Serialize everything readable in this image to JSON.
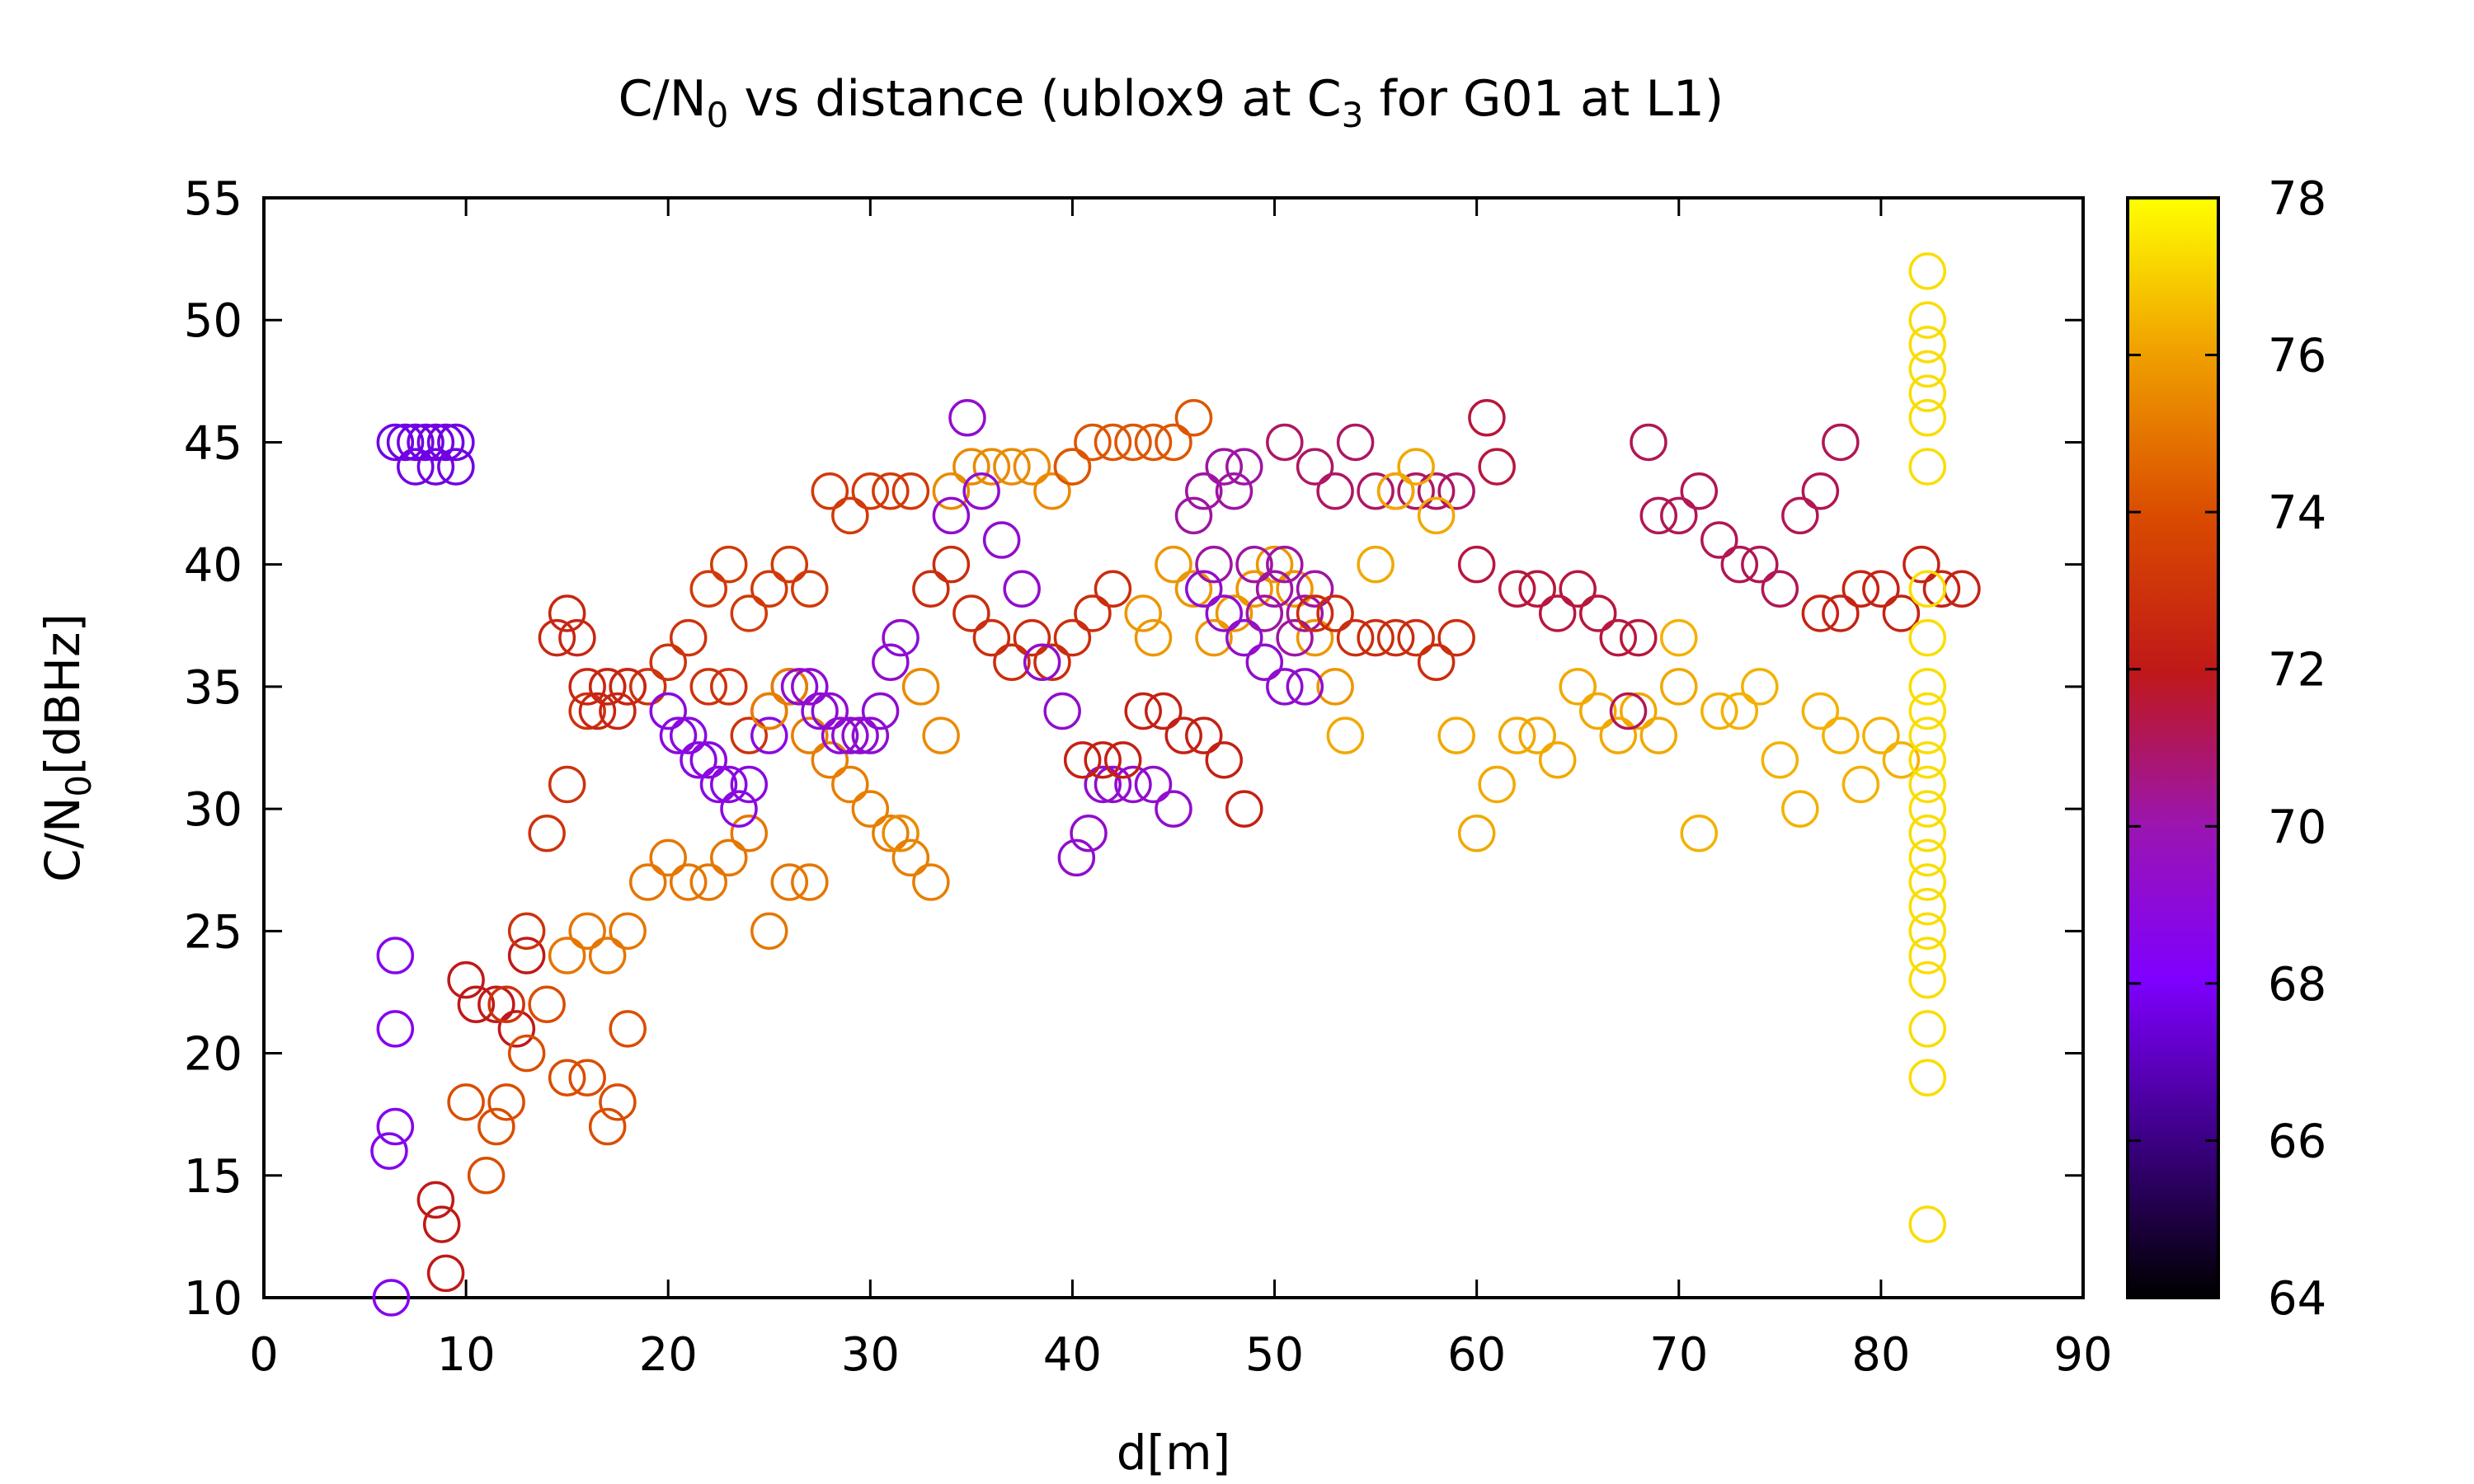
{
  "chart_data": {
    "type": "scatter",
    "title": {
      "main": "C/N",
      "sub1": "0",
      "mid": " vs distance (ublox9 at C",
      "sub2": "3",
      "tail": " for G01 at L1)"
    },
    "xlabel": "d[m]",
    "ylabel": {
      "main": "C/N",
      "sub": "0",
      "tail": "[dBHz]"
    },
    "xlim": [
      0,
      90
    ],
    "ylim": [
      10,
      55
    ],
    "xticks": [
      0,
      10,
      20,
      30,
      40,
      50,
      60,
      70,
      80,
      90
    ],
    "yticks": [
      10,
      15,
      20,
      25,
      30,
      35,
      40,
      45,
      50,
      55
    ],
    "xtick_labels": [
      "0",
      "10",
      "20",
      "30",
      "40",
      "50",
      "60",
      "70",
      "80",
      "90"
    ],
    "ytick_labels": [
      "10",
      "15",
      "20",
      "25",
      "30",
      "35",
      "40",
      "45",
      "50",
      "55"
    ],
    "colorbar": {
      "range": [
        64,
        78
      ],
      "ticks": [
        64,
        66,
        68,
        70,
        72,
        74,
        76,
        78
      ],
      "tick_labels": [
        "64",
        "66",
        "68",
        "70",
        "72",
        "74",
        "76",
        "78"
      ],
      "palette": [
        [
          "#000000",
          0
        ],
        [
          "#3a0080",
          0.14
        ],
        [
          "#7f00ff",
          0.29
        ],
        [
          "#9b15b0",
          0.43
        ],
        [
          "#c01818",
          0.57
        ],
        [
          "#d94b00",
          0.71
        ],
        [
          "#f0a000",
          0.86
        ],
        [
          "#ffff00",
          1
        ]
      ]
    },
    "marker": "open-circle",
    "grid": false,
    "legend": "none",
    "series": [
      {
        "x": [
          6.5,
          7,
          7.5,
          8,
          8.5,
          9,
          9.5,
          7.5,
          8.5,
          9.5
        ],
        "y": [
          45,
          45,
          45,
          45,
          45,
          45,
          45,
          44,
          44,
          44
        ],
        "c": [
          67.6,
          67.6,
          67.6,
          67.6,
          67.6,
          67.6,
          67.6,
          67.6,
          67.6,
          67.6
        ]
      },
      {
        "x": [
          6.5,
          6.5,
          6.5,
          6.2,
          6.3
        ],
        "y": [
          24,
          21,
          17,
          16,
          10
        ],
        "c": [
          68.5,
          68.5,
          68.5,
          68.5,
          68.5
        ]
      },
      {
        "x": [
          8.5,
          8.8,
          9,
          10,
          10.5,
          11.5,
          12.5,
          13
        ],
        "y": [
          14,
          13,
          11,
          23,
          22,
          22,
          21,
          24
        ],
        "c": [
          72,
          72,
          72,
          72,
          72,
          72,
          72,
          72
        ]
      },
      {
        "x": [
          10,
          11,
          11.5,
          12,
          13,
          14,
          15,
          16,
          17,
          17.5,
          18
        ],
        "y": [
          18,
          15,
          17,
          18,
          20,
          22,
          19,
          19,
          17,
          18,
          21
        ],
        "c": [
          74,
          74,
          74,
          74,
          74,
          74,
          74,
          74,
          74,
          74,
          74
        ]
      },
      {
        "x": [
          12,
          13,
          14,
          15,
          16,
          17,
          18,
          19,
          20,
          21,
          22,
          23,
          24,
          25,
          26
        ],
        "y": [
          22,
          25,
          29,
          31,
          34,
          35,
          35,
          35,
          36,
          37,
          35,
          35,
          33,
          34,
          35
        ],
        "c": [
          73,
          73,
          73,
          73,
          73,
          73,
          73,
          73,
          73,
          73,
          73,
          73,
          73,
          73,
          73
        ]
      },
      {
        "x": [
          14.5,
          15,
          15.5,
          16,
          16.5,
          17,
          17.5,
          18
        ],
        "y": [
          37,
          38,
          37,
          35,
          34,
          35,
          34,
          35
        ],
        "c": [
          72.5,
          72.5,
          72.5,
          72.5,
          72.5,
          72.5,
          72.5,
          72.5
        ]
      },
      {
        "x": [
          15,
          16,
          17,
          18,
          19,
          20,
          21,
          22,
          23,
          24,
          25,
          26,
          27
        ],
        "y": [
          24,
          25,
          24,
          25,
          27,
          28,
          27,
          27,
          28,
          29,
          25,
          27,
          27
        ],
        "c": [
          75,
          75,
          75,
          75,
          75,
          75,
          75,
          75,
          75,
          75,
          75,
          75,
          75
        ]
      },
      {
        "x": [
          20,
          20.5,
          21,
          21.5,
          22,
          22.5,
          23,
          23.5,
          24,
          25
        ],
        "y": [
          34,
          33,
          33,
          32,
          32,
          31,
          31,
          30,
          31,
          33
        ],
        "c": [
          68.8,
          68.8,
          68.8,
          68.8,
          68.8,
          68.8,
          68.8,
          68.8,
          68.8,
          68.8
        ]
      },
      {
        "x": [
          22,
          23,
          24,
          25,
          26,
          27,
          28,
          29,
          30,
          31,
          32
        ],
        "y": [
          39,
          40,
          38,
          39,
          40,
          39,
          43,
          42,
          43,
          43,
          43
        ],
        "c": [
          73.3,
          73.3,
          73.3,
          73.3,
          73.3,
          73.3,
          73.3,
          73.3,
          73.3,
          73.3,
          73.3
        ]
      },
      {
        "x": [
          25,
          26,
          27,
          28,
          29,
          30,
          31,
          32,
          33
        ],
        "y": [
          34,
          35,
          33,
          32,
          31,
          30,
          29,
          28,
          27
        ],
        "c": [
          75.2,
          75.2,
          75.2,
          75.2,
          75.2,
          75.2,
          75.2,
          75.2,
          75.2
        ]
      },
      {
        "x": [
          26.5,
          27,
          27.5,
          28,
          28.5,
          29,
          29.5,
          30,
          30.5,
          31,
          31.5
        ],
        "y": [
          35,
          35,
          34,
          34,
          33,
          33,
          33,
          33,
          34,
          36,
          37
        ],
        "c": [
          69.2,
          69.2,
          69.2,
          69.2,
          69.2,
          69.2,
          69.2,
          69.2,
          69.2,
          69.2,
          69.2
        ]
      },
      {
        "x": [
          31.5,
          32.5,
          33.5,
          34,
          35,
          36,
          37,
          38,
          39,
          40
        ],
        "y": [
          29,
          35,
          33,
          43,
          44,
          44,
          44,
          44,
          43,
          44
        ],
        "c": [
          75.5,
          75.5,
          75.5,
          75.5,
          75.5,
          75.5,
          75.5,
          75.5,
          75.5,
          75.5
        ]
      },
      {
        "x": [
          33,
          34,
          35,
          36,
          37,
          38,
          39,
          40,
          41,
          42
        ],
        "y": [
          39,
          40,
          38,
          37,
          36,
          37,
          36,
          37,
          38,
          39
        ],
        "c": [
          72.8,
          72.8,
          72.8,
          72.8,
          72.8,
          72.8,
          72.8,
          72.8,
          72.8,
          72.8
        ]
      },
      {
        "x": [
          34,
          34.8,
          35.5,
          36.5,
          37.5,
          38.5,
          39.5,
          40.2,
          40.8,
          41.5,
          42,
          43,
          44,
          45
        ],
        "y": [
          42,
          46,
          43,
          41,
          39,
          36,
          34,
          28,
          29,
          31,
          31,
          31,
          31,
          30
        ],
        "c": [
          69.3,
          69.3,
          69.3,
          69.3,
          69.3,
          69.3,
          69.3,
          69.3,
          69.3,
          69.3,
          69.3,
          69.3,
          69.3,
          69.3
        ]
      },
      {
        "x": [
          40,
          41,
          42,
          43,
          44,
          45,
          46
        ],
        "y": [
          44,
          45,
          45,
          45,
          45,
          45,
          46
        ],
        "c": [
          74.2,
          74.2,
          74.2,
          74.2,
          74.2,
          74.2,
          74.2
        ]
      },
      {
        "x": [
          40.5,
          41.5,
          42.5,
          43.5,
          44.5,
          45.5,
          46.5,
          47.5,
          48.5
        ],
        "y": [
          32,
          32,
          32,
          34,
          34,
          33,
          33,
          32,
          30
        ],
        "c": [
          72.3,
          72.3,
          72.3,
          72.3,
          72.3,
          72.3,
          72.3,
          72.3,
          72.3
        ]
      },
      {
        "x": [
          43.5,
          44,
          45,
          46,
          47,
          48,
          49,
          50,
          51,
          52,
          53
        ],
        "y": [
          38,
          37,
          40,
          39,
          37,
          38,
          39,
          40,
          39,
          37,
          35
        ],
        "c": [
          75.8,
          75.8,
          75.8,
          75.8,
          75.8,
          75.8,
          75.8,
          75.8,
          75.8,
          75.8,
          75.8
        ]
      },
      {
        "x": [
          46,
          46.5,
          47,
          47.5,
          48,
          48.5,
          49,
          49.5,
          50,
          50.5,
          51,
          51.5,
          52
        ],
        "y": [
          42,
          43,
          40,
          44,
          43,
          44,
          40,
          38,
          39,
          40,
          37,
          38,
          39
        ],
        "c": [
          70.2,
          70.2,
          70.2,
          70.2,
          70.2,
          70.2,
          70.2,
          70.2,
          70.2,
          70.2,
          70.2,
          70.2,
          70.2
        ]
      },
      {
        "x": [
          46.5,
          47.5,
          48.5,
          49.5,
          50.5,
          51.5
        ],
        "y": [
          39,
          38,
          37,
          36,
          35,
          35
        ],
        "c": [
          69.3,
          69.3,
          69.3,
          69.3,
          69.3,
          69.3
        ]
      },
      {
        "x": [
          50.5,
          52,
          53,
          54,
          55,
          56,
          57,
          58,
          59
        ],
        "y": [
          45,
          44,
          43,
          45,
          43,
          43,
          43,
          43,
          43
        ],
        "c": [
          71,
          71,
          71,
          71,
          71,
          71,
          71,
          71,
          71
        ]
      },
      {
        "x": [
          52,
          53,
          54,
          55,
          56,
          57,
          58,
          59
        ],
        "y": [
          38,
          38,
          37,
          37,
          37,
          37,
          36,
          37
        ],
        "c": [
          72.8,
          72.8,
          72.8,
          72.8,
          72.8,
          72.8,
          72.8,
          72.8
        ]
      },
      {
        "x": [
          53.5,
          55,
          56,
          57,
          58,
          59,
          60,
          61,
          62,
          63,
          64,
          65,
          66,
          67,
          68,
          69,
          70
        ],
        "y": [
          33,
          40,
          43,
          44,
          42,
          33,
          29,
          31,
          33,
          33,
          32,
          35,
          34,
          33,
          34,
          33,
          35
        ],
        "c": [
          76.2,
          76.2,
          76.2,
          76.2,
          76.2,
          76.2,
          76.2,
          76.2,
          76.2,
          76.2,
          76.2,
          76.2,
          76.2,
          76.2,
          76.2,
          76.2,
          76.2
        ]
      },
      {
        "x": [
          60,
          60.5,
          61,
          62,
          63,
          64,
          65,
          66,
          67,
          68
        ],
        "y": [
          40,
          46,
          44,
          39,
          39,
          38,
          39,
          38,
          37,
          37
        ],
        "c": [
          71.5,
          71.5,
          71.5,
          71.5,
          71.5,
          71.5,
          71.5,
          71.5,
          71.5,
          71.5
        ]
      },
      {
        "x": [
          67.5,
          68.5,
          69,
          70,
          71,
          72,
          73,
          74,
          75,
          76,
          77,
          78
        ],
        "y": [
          34,
          45,
          42,
          42,
          43,
          41,
          40,
          40,
          39,
          42,
          43,
          45
        ],
        "c": [
          71.2,
          71.2,
          71.2,
          71.2,
          71.2,
          71.2,
          71.2,
          71.2,
          71.2,
          71.2,
          71.2,
          71.2
        ]
      },
      {
        "x": [
          70,
          71,
          72,
          73,
          74,
          75,
          76,
          77,
          78,
          79,
          80,
          81
        ],
        "y": [
          37,
          29,
          34,
          34,
          35,
          32,
          30,
          34,
          33,
          31,
          33,
          32
        ],
        "c": [
          76.4,
          76.4,
          76.4,
          76.4,
          76.4,
          76.4,
          76.4,
          76.4,
          76.4,
          76.4,
          76.4,
          76.4
        ]
      },
      {
        "x": [
          77,
          78,
          79,
          80,
          81,
          82,
          83,
          84
        ],
        "y": [
          38,
          38,
          39,
          39,
          38,
          40,
          39,
          39
        ],
        "c": [
          72.4,
          72.4,
          72.4,
          72.4,
          72.4,
          72.4,
          72.4,
          72.4
        ]
      },
      {
        "x": [
          82.3,
          82.3,
          82.3,
          82.3,
          82.3,
          82.3,
          82.3,
          82.3,
          82.3,
          82.3,
          82.3,
          82.3,
          82.3,
          82.3,
          82.3,
          82.3,
          82.3,
          82.3,
          82.3,
          82.3,
          82.3,
          82.3,
          82.3,
          82.3,
          82.3
        ],
        "y": [
          52,
          50,
          49,
          48,
          47,
          46,
          44,
          39,
          37,
          35,
          34,
          33,
          32,
          31,
          30,
          29,
          28,
          27,
          26,
          25,
          24,
          23,
          21,
          19,
          13
        ],
        "c": [
          77.3,
          77.3,
          77.3,
          77.3,
          77.3,
          77.3,
          77.3,
          77.3,
          77.3,
          77.3,
          77.3,
          77.3,
          77.3,
          77.3,
          77.3,
          77.3,
          77.3,
          77.3,
          77.3,
          77.3,
          77.3,
          77.3,
          77.3,
          77.3,
          77.3
        ]
      }
    ]
  }
}
